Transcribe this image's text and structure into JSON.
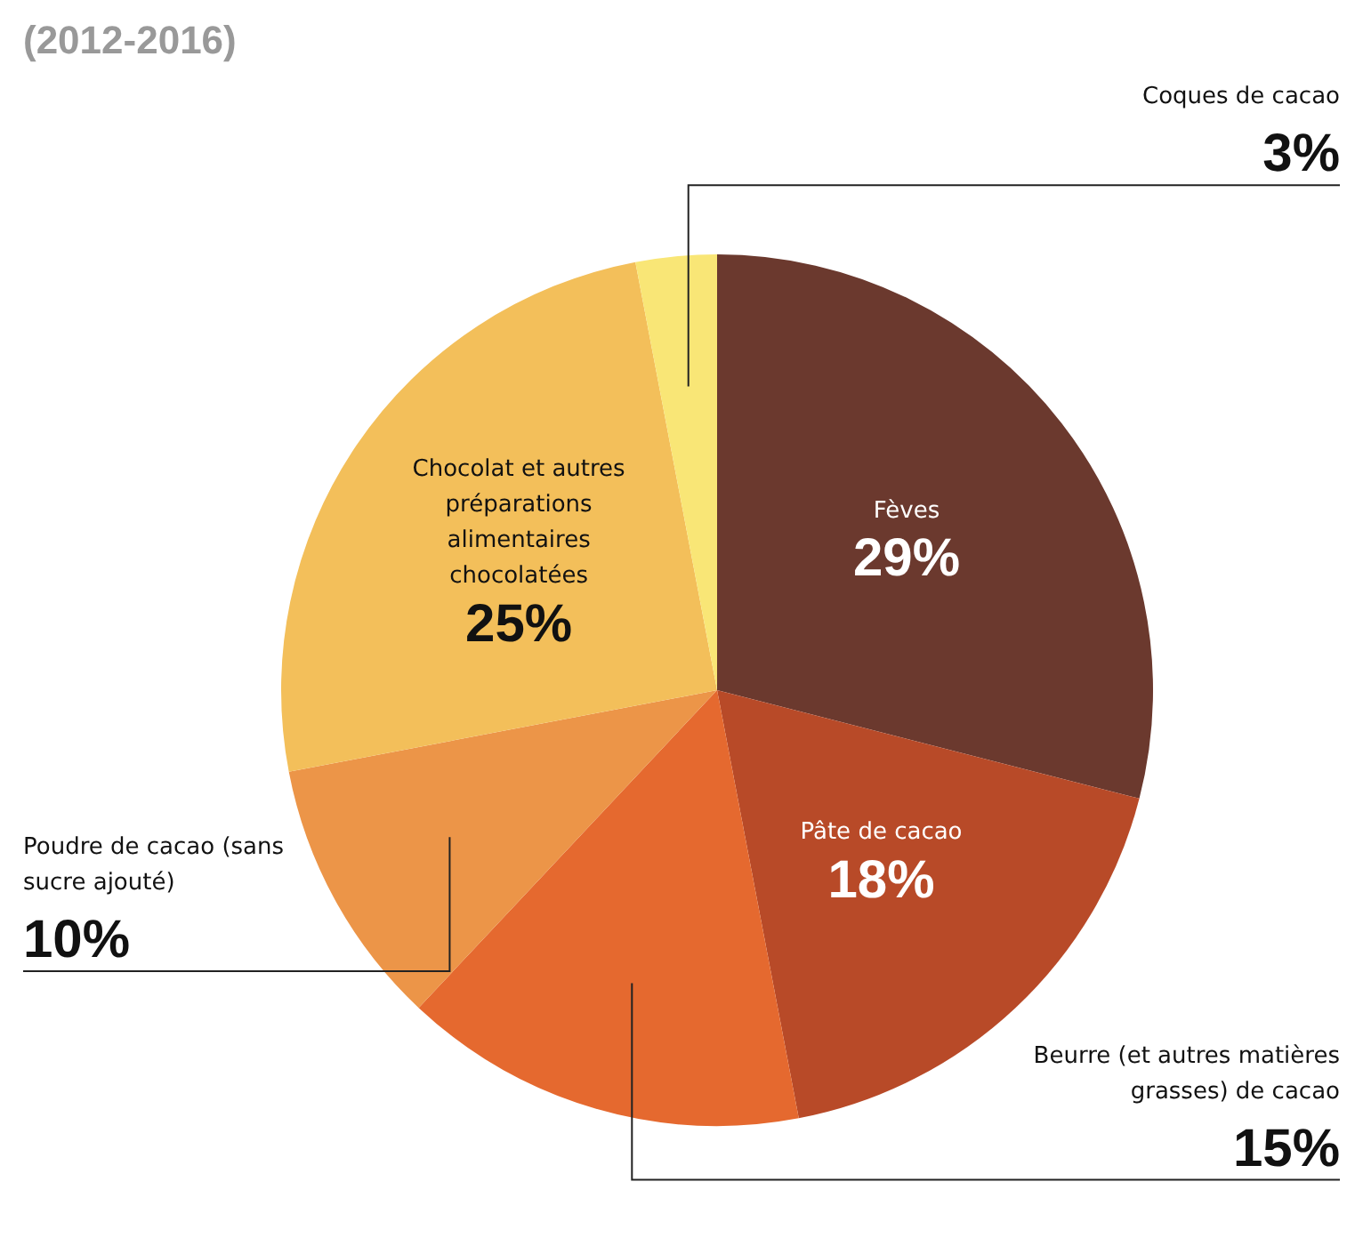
{
  "chart_data": {
    "type": "pie",
    "subtitle": "(2012-2016)",
    "categories": [
      "Fèves",
      "Pâte de cacao",
      "Beurre (et autres matières grasses) de cacao",
      "Poudre de cacao (sans sucre ajouté)",
      "Chocolat et autres préparations alimentaires chocolatées",
      "Coques de cacao"
    ],
    "values": [
      29,
      18,
      15,
      10,
      25,
      3
    ],
    "value_labels": [
      "29%",
      "18%",
      "15%",
      "10%",
      "25%",
      "3%"
    ],
    "colors": [
      "#6b392e",
      "#b84a28",
      "#e5692f",
      "#ec9548",
      "#f3bf5a",
      "#f9e676"
    ],
    "legend": false
  }
}
